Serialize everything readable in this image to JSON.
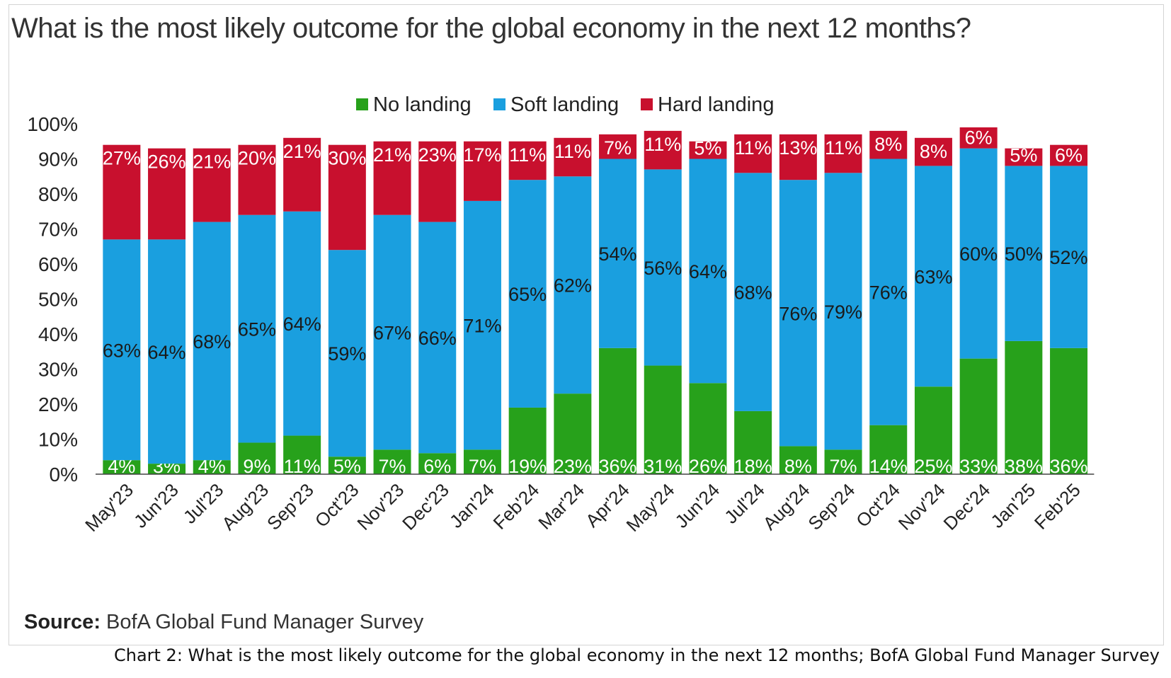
{
  "title": "What is the most likely outcome for the global economy in the next 12 months?",
  "source": {
    "label": "Source:",
    "text": "BofA Global Fund Manager Survey"
  },
  "caption": "Chart 2: What is the most likely outcome for the global economy in the next 12 months; BofA Global Fund Manager Survey",
  "colors": {
    "no_landing": "#27a11b",
    "soft_landing": "#1a9fdf",
    "hard_landing": "#c8102e"
  },
  "chart_data": {
    "type": "bar",
    "stacked": true,
    "title": "What is the most likely outcome for the global economy in the next 12 months?",
    "categories": [
      "May'23",
      "Jun'23",
      "Jul'23",
      "Aug'23",
      "Sep'23",
      "Oct'23",
      "Nov'23",
      "Dec'23",
      "Jan'24",
      "Feb'24",
      "Mar'24",
      "Apr'24",
      "May'24",
      "Jun'24",
      "Jul'24",
      "Aug'24",
      "Sep'24",
      "Oct'24",
      "Nov'24",
      "Dec'24",
      "Jan'25",
      "Feb'25"
    ],
    "series": [
      {
        "name": "No landing",
        "values": [
          4,
          3,
          4,
          9,
          11,
          5,
          7,
          6,
          7,
          19,
          23,
          36,
          31,
          26,
          18,
          8,
          7,
          14,
          25,
          33,
          38,
          36
        ]
      },
      {
        "name": "Soft landing",
        "values": [
          63,
          64,
          68,
          65,
          64,
          59,
          67,
          66,
          71,
          65,
          62,
          54,
          56,
          64,
          68,
          76,
          79,
          76,
          63,
          60,
          50,
          52
        ]
      },
      {
        "name": "Hard landing",
        "values": [
          27,
          26,
          21,
          20,
          21,
          30,
          21,
          23,
          17,
          11,
          11,
          7,
          11,
          5,
          11,
          13,
          11,
          8,
          8,
          6,
          5,
          6
        ]
      }
    ],
    "yticks": [
      "0%",
      "10%",
      "20%",
      "30%",
      "40%",
      "50%",
      "60%",
      "70%",
      "80%",
      "90%",
      "100%"
    ],
    "ylim": [
      0,
      100
    ],
    "legend": "top-center",
    "grid": false
  }
}
